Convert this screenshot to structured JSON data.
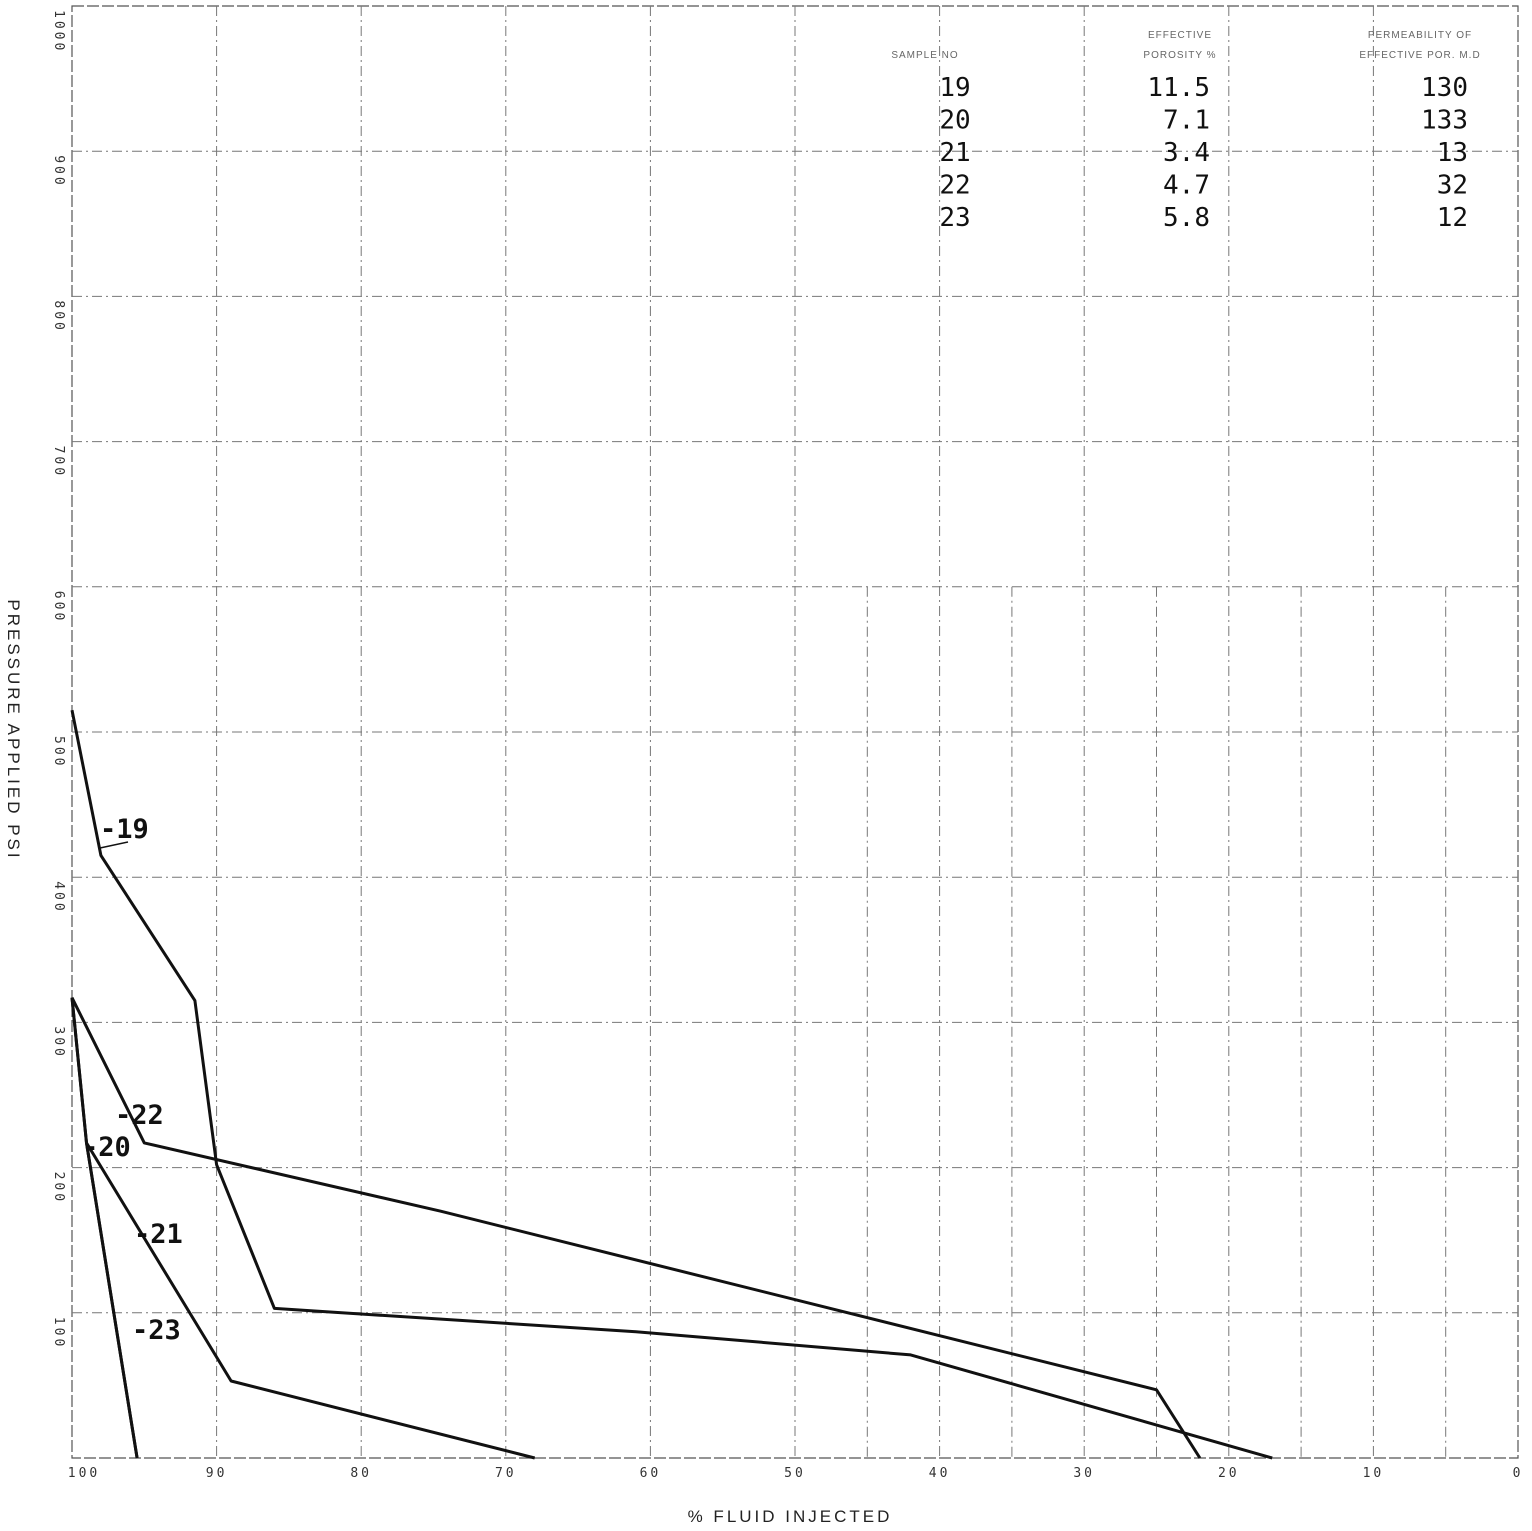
{
  "chart_data": {
    "type": "line",
    "xlabel": "% FLUID INJECTED",
    "ylabel": "PRESSURE APPLIED PSI",
    "xlim": [
      100,
      0
    ],
    "ylim": [
      0,
      1000
    ],
    "x_ticks": [
      "100",
      "90",
      "80",
      "70",
      "60",
      "50",
      "40",
      "30",
      "20",
      "10",
      "0"
    ],
    "y_ticks": [
      "100",
      "200",
      "300",
      "400",
      "500",
      "600",
      "700",
      "800",
      "900",
      "1000"
    ],
    "grid": true,
    "series": [
      {
        "name": "19",
        "label": "-19",
        "points": [
          [
            100,
            515
          ],
          [
            98,
            415
          ],
          [
            91.5,
            315
          ],
          [
            90,
            202
          ],
          [
            86,
            103
          ],
          [
            61,
            87
          ],
          [
            42,
            71
          ],
          [
            17,
            0
          ]
        ]
      },
      {
        "name": "20",
        "label": "-20",
        "points": [
          [
            100,
            317
          ],
          [
            99,
            217
          ],
          [
            95.5,
            0
          ]
        ]
      },
      {
        "name": "21",
        "label": "-21",
        "points": [
          [
            99,
            217
          ],
          [
            89,
            53
          ],
          [
            68,
            0
          ]
        ]
      },
      {
        "name": "22",
        "label": "-22",
        "points": [
          [
            100,
            317
          ],
          [
            95,
            217
          ],
          [
            74.5,
            170
          ],
          [
            25,
            47
          ],
          [
            22,
            0
          ]
        ]
      },
      {
        "name": "23",
        "label": "-23",
        "points": [
          [
            100,
            317
          ],
          [
            99,
            217
          ],
          [
            95.5,
            0
          ]
        ]
      }
    ],
    "table": {
      "headers": [
        "SAMPLE NO",
        "EFFECTIVE POROSITY %",
        "PERMEABILITY OF EFFECTIVE POR. M.D"
      ],
      "rows": [
        [
          "19",
          "11.5",
          "130"
        ],
        [
          "20",
          "7.1",
          "133"
        ],
        [
          "21",
          "3.4",
          "13"
        ],
        [
          "22",
          "4.7",
          "32"
        ],
        [
          "23",
          "5.8",
          "12"
        ]
      ]
    }
  }
}
